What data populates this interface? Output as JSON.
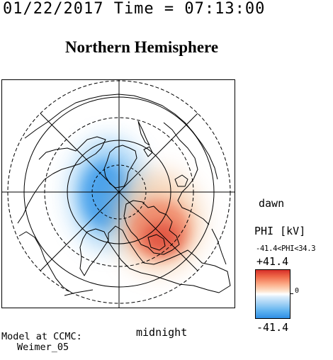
{
  "header": {
    "datetime": "01/22/2017 Time = 07:13:00",
    "title": "Northern Hemisphere"
  },
  "map": {
    "projection": "polar stereographic, north pole centered",
    "labels": {
      "dawn": "dawn",
      "midnight": "midnight"
    },
    "features": [
      {
        "name": "negative-potential-cell",
        "polarity": "negative",
        "color": "#3d9bea",
        "region": "pre-midnight / dusk side"
      },
      {
        "name": "positive-potential-cell",
        "polarity": "positive",
        "color": "#e0503c",
        "region": "post-midnight / dawn side"
      }
    ]
  },
  "colorbar": {
    "label": "PHI [kV]",
    "range_text": "-41.4<PHI<34.3",
    "max_label": "+41.4",
    "min_label": "-41.4",
    "zero_label": "0",
    "min": -41.4,
    "max": 41.4,
    "colors": {
      "high": "#d7302a",
      "zero": "#ffffff",
      "low": "#2f8fe6"
    }
  },
  "credit": {
    "line1": "Model at CCMC:",
    "line2": "Weimer_05"
  }
}
